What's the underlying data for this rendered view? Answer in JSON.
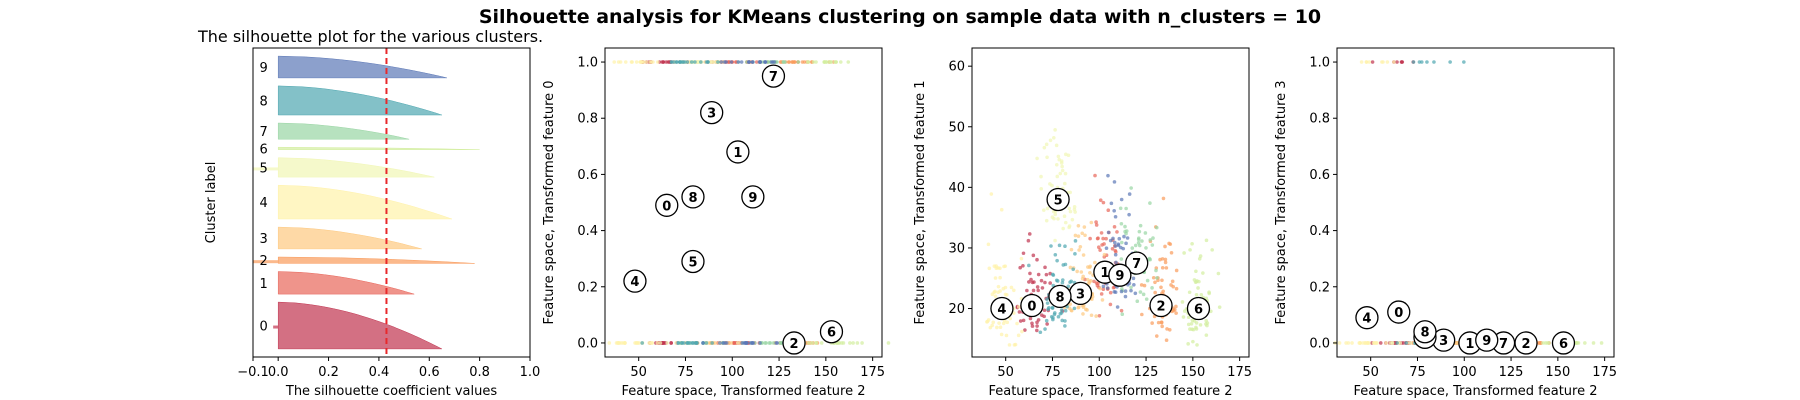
{
  "suptitle": "Silhouette analysis for KMeans clustering on sample data with n_clusters = 10",
  "chart_data": [
    {
      "type": "area",
      "title": "The silhouette plot for the various clusters.",
      "xlabel": "The silhouette coefficient values",
      "ylabel": "Cluster label",
      "xlim": [
        -0.1,
        1.0
      ],
      "xticks": [
        "−0.1",
        "0.0",
        "0.2",
        "0.4",
        "0.6",
        "0.8",
        "1.0"
      ],
      "xtick_values": [
        -0.1,
        0.0,
        0.2,
        0.4,
        0.6,
        0.8,
        1.0
      ],
      "average_silhouette": 0.43,
      "average_line_color": "#e8282b",
      "clusters": [
        {
          "label": "0",
          "size": 58,
          "max": 0.65,
          "min": -0.02,
          "color": "#c1334f"
        },
        {
          "label": "1",
          "size": 28,
          "max": 0.54,
          "min": 0.0,
          "color": "#e8665a"
        },
        {
          "label": "2",
          "size": 8,
          "max": 0.78,
          "min": -0.1,
          "color": "#f99b5b"
        },
        {
          "label": "3",
          "size": 27,
          "max": 0.57,
          "min": 0.0,
          "color": "#fdc980"
        },
        {
          "label": "4",
          "size": 42,
          "max": 0.69,
          "min": 0.0,
          "color": "#fff2a9"
        },
        {
          "label": "5",
          "size": 24,
          "max": 0.62,
          "min": -0.1,
          "color": "#f1f7b5"
        },
        {
          "label": "6",
          "size": 3,
          "max": 0.8,
          "min": 0.0,
          "color": "#d3ee9f"
        },
        {
          "label": "7",
          "size": 20,
          "max": 0.52,
          "min": 0.0,
          "color": "#99d5a4"
        },
        {
          "label": "8",
          "size": 36,
          "max": 0.65,
          "min": 0.0,
          "color": "#4ea7b0"
        },
        {
          "label": "9",
          "size": 27,
          "max": 0.67,
          "min": 0.0,
          "color": "#5b77b6"
        }
      ]
    },
    {
      "type": "scatter",
      "xlabel": "Feature space, Transformed feature 2",
      "ylabel": "Feature space, Transformed feature 0",
      "xlim": [
        32,
        180
      ],
      "ylim": [
        -0.05,
        1.05
      ],
      "xticks": [
        50,
        75,
        100,
        125,
        150,
        175
      ],
      "yticks": [
        "0.0",
        "0.2",
        "0.4",
        "0.6",
        "0.8",
        "1.0"
      ],
      "ytick_values": [
        0.0,
        0.2,
        0.4,
        0.6,
        0.8,
        1.0
      ],
      "centers": [
        {
          "label": "0",
          "x": 65,
          "y": 0.49
        },
        {
          "label": "1",
          "x": 103,
          "y": 0.68
        },
        {
          "label": "2",
          "x": 133,
          "y": 0.0
        },
        {
          "label": "3",
          "x": 89,
          "y": 0.82
        },
        {
          "label": "4",
          "x": 48,
          "y": 0.22
        },
        {
          "label": "5",
          "x": 79,
          "y": 0.29
        },
        {
          "label": "6",
          "x": 153,
          "y": 0.04
        },
        {
          "label": "7",
          "x": 122,
          "y": 0.95
        },
        {
          "label": "8",
          "x": 79,
          "y": 0.52
        },
        {
          "label": "9",
          "x": 111,
          "y": 0.52
        }
      ]
    },
    {
      "type": "scatter",
      "xlabel": "Feature space, Transformed feature 2",
      "ylabel": "Feature space, Transformed feature 1",
      "xlim": [
        32,
        180
      ],
      "ylim": [
        12,
        63
      ],
      "xticks": [
        50,
        75,
        100,
        125,
        150,
        175
      ],
      "yticks": [
        20,
        30,
        40,
        50,
        60
      ],
      "centers": [
        {
          "label": "0",
          "x": 64,
          "y": 20.5
        },
        {
          "label": "1",
          "x": 103,
          "y": 26
        },
        {
          "label": "2",
          "x": 133,
          "y": 20.5
        },
        {
          "label": "3",
          "x": 90,
          "y": 22.5
        },
        {
          "label": "4",
          "x": 48,
          "y": 20
        },
        {
          "label": "5",
          "x": 78,
          "y": 38
        },
        {
          "label": "6",
          "x": 153,
          "y": 20
        },
        {
          "label": "7",
          "x": 120,
          "y": 27.5
        },
        {
          "label": "8",
          "x": 79,
          "y": 22
        },
        {
          "label": "9",
          "x": 111,
          "y": 25.5
        }
      ]
    },
    {
      "type": "scatter",
      "xlabel": "Feature space, Transformed feature 2",
      "ylabel": "Feature space, Transformed feature 3",
      "xlim": [
        32,
        180
      ],
      "ylim": [
        -0.05,
        1.05
      ],
      "xticks": [
        50,
        75,
        100,
        125,
        150,
        175
      ],
      "yticks": [
        "0.0",
        "0.2",
        "0.4",
        "0.6",
        "0.8",
        "1.0"
      ],
      "ytick_values": [
        0.0,
        0.2,
        0.4,
        0.6,
        0.8,
        1.0
      ],
      "centers": [
        {
          "label": "0",
          "x": 65,
          "y": 0.11
        },
        {
          "label": "1",
          "x": 103,
          "y": 0.0
        },
        {
          "label": "2",
          "x": 133,
          "y": 0.0
        },
        {
          "label": "3",
          "x": 89,
          "y": 0.01
        },
        {
          "label": "4",
          "x": 48,
          "y": 0.09
        },
        {
          "label": "5",
          "x": 79,
          "y": 0.02
        },
        {
          "label": "6",
          "x": 153,
          "y": 0.0
        },
        {
          "label": "7",
          "x": 121,
          "y": 0.0
        },
        {
          "label": "8",
          "x": 79,
          "y": 0.04
        },
        {
          "label": "9",
          "x": 112,
          "y": 0.01
        }
      ]
    }
  ]
}
